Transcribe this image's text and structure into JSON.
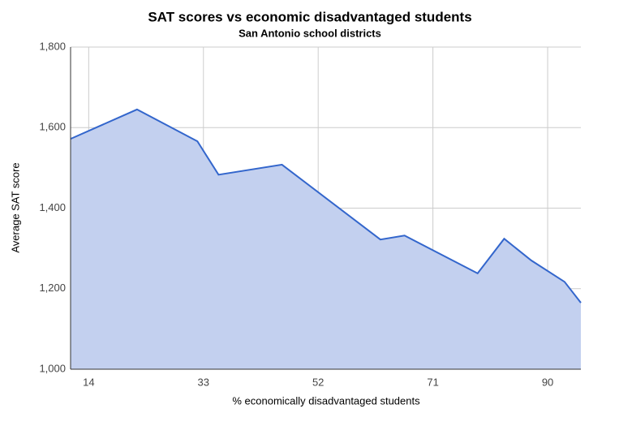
{
  "chart_data": {
    "type": "area",
    "title": "SAT scores vs economic disadvantaged students",
    "subtitle": "San Antonio school districts",
    "x_label": "% economically disadvantaged students",
    "y_label": "Average SAT score",
    "x": [
      11,
      22,
      32,
      35.5,
      46,
      62.3,
      66.3,
      78.4,
      82.8,
      87.3,
      92.8,
      95.5
    ],
    "series": [
      {
        "name": "Average SAT score",
        "color": "#3366cc",
        "values": [
          1572,
          1645,
          1566,
          1483,
          1508,
          1322,
          1332,
          1238,
          1324,
          1270,
          1217,
          1165
        ]
      }
    ],
    "fill_color": "#c3d0ef",
    "xlim": [
      11,
      95.5
    ],
    "xticks": [
      14,
      33,
      52,
      71,
      90
    ],
    "ylim": [
      1000,
      1800
    ],
    "yticks": [
      {
        "value": 1000,
        "label": "1,000"
      },
      {
        "value": 1200,
        "label": "1,200"
      },
      {
        "value": 1400,
        "label": "1,400"
      },
      {
        "value": 1600,
        "label": "1,600"
      },
      {
        "value": 1800,
        "label": "1,800"
      }
    ],
    "grid": true
  }
}
